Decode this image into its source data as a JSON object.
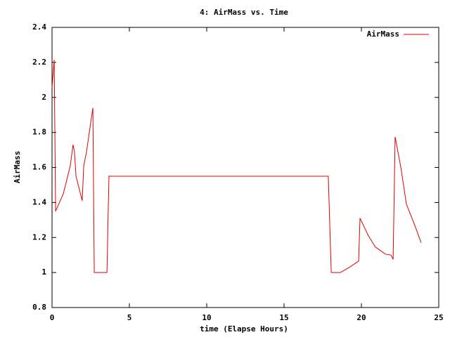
{
  "chart_data": {
    "type": "line",
    "title": "4: AirMass vs. Time",
    "xlabel": "time (Elapse Hours)",
    "ylabel": "AirMass",
    "x": [
      0,
      0.14,
      0.23,
      0.73,
      1.18,
      1.36,
      1.45,
      1.55,
      1.95,
      2.05,
      2.23,
      2.64,
      2.73,
      3.55,
      3.68,
      17.86,
      18.05,
      18.64,
      19.23,
      19.82,
      19.91,
      20.45,
      20.91,
      21.55,
      21.91,
      22.05,
      22.18,
      22.55,
      22.91,
      23.45,
      23.86
    ],
    "series": [
      {
        "name": "AirMass",
        "color": "#e00000",
        "values": [
          2.055,
          2.215,
          1.35,
          1.45,
          1.61,
          1.73,
          1.69,
          1.55,
          1.41,
          1.61,
          1.69,
          1.94,
          1,
          1,
          1.55,
          1.55,
          1,
          1,
          1.03,
          1.065,
          1.31,
          1.21,
          1.145,
          1.105,
          1.1,
          1.075,
          1.775,
          1.6,
          1.39,
          1.27,
          1.17
        ]
      }
    ],
    "xlim": [
      0,
      25
    ],
    "xticks": [
      0,
      5,
      10,
      15,
      20,
      25
    ],
    "ylim": [
      0.8,
      2.4
    ],
    "yticks": [
      0.8,
      1,
      1.2,
      1.4,
      1.6,
      1.8,
      2,
      2.2,
      2.4
    ],
    "grid": false,
    "legend": "top-right"
  }
}
